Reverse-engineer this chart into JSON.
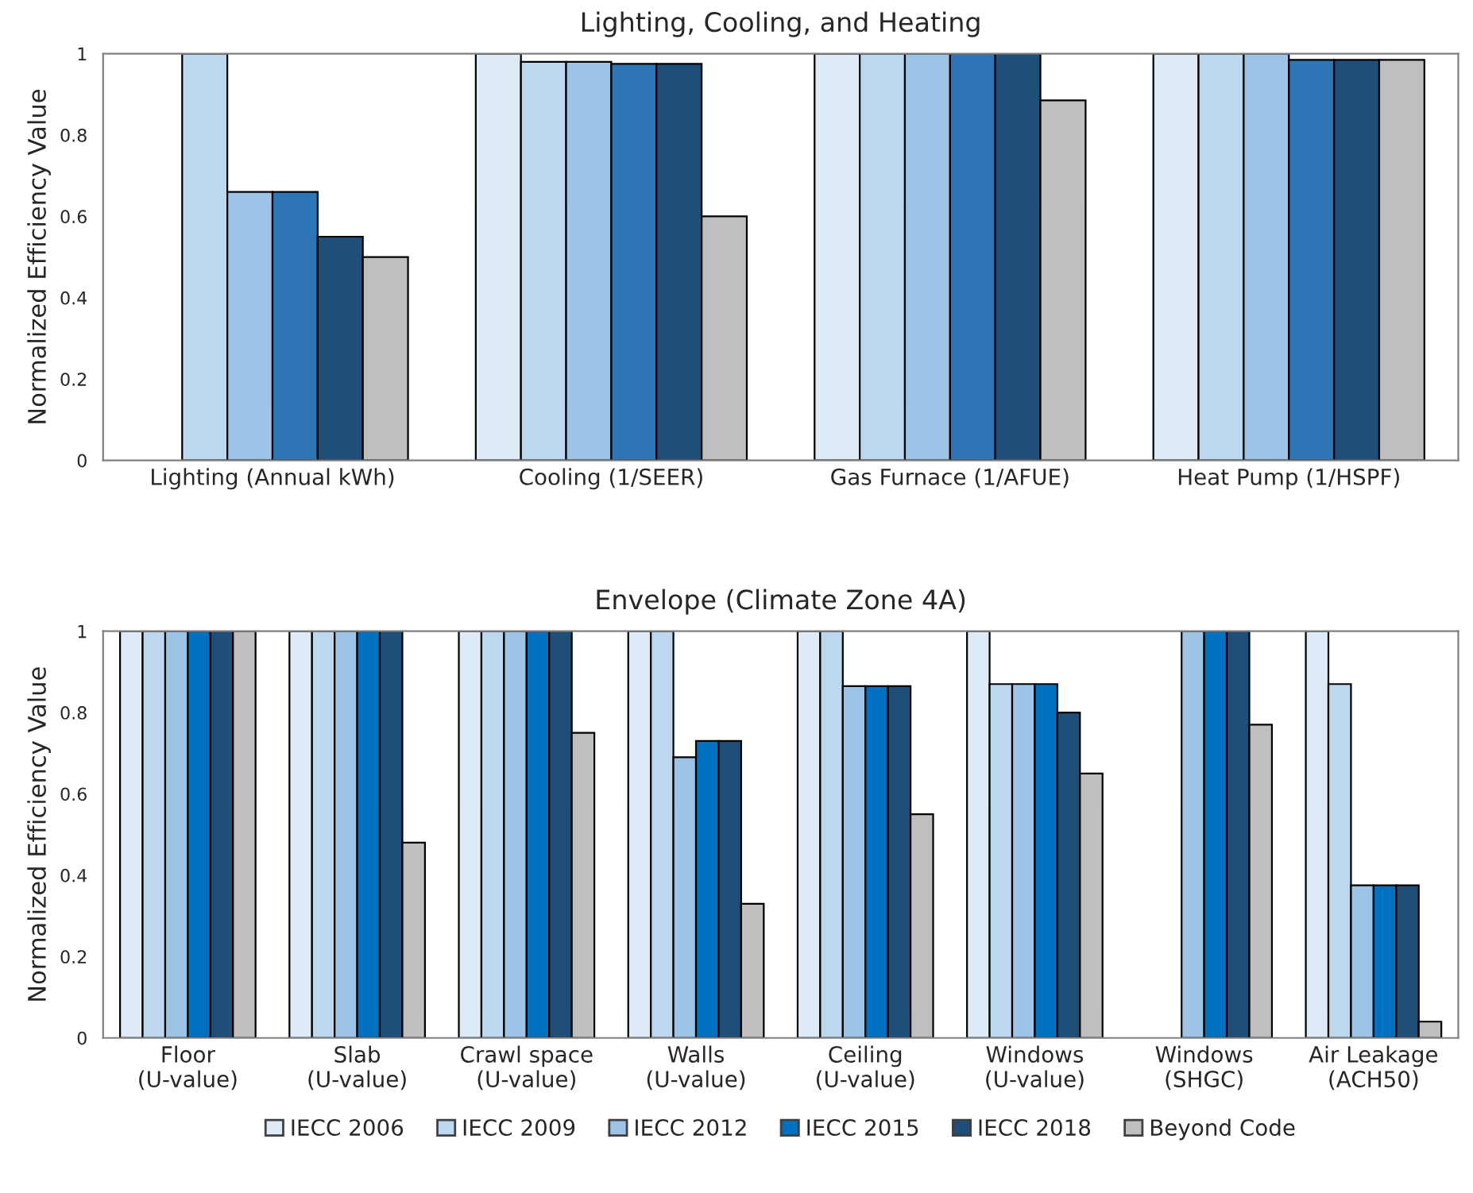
{
  "chart_data": [
    {
      "type": "bar",
      "title": "Lighting, Cooling, and Heating",
      "ylabel": "Normalized Efficiency Value",
      "categories": [
        "Lighting (Annual kWh)",
        "Cooling (1/SEER)",
        "Gas Furnace (1/AFUE)",
        "Heat Pump (1/HSPF)"
      ],
      "series": [
        {
          "color": "#deebf7",
          "values": [
            null,
            1,
            1,
            1
          ]
        },
        {
          "color": "#bdd7ee",
          "values": [
            1,
            0.98,
            1,
            1
          ]
        },
        {
          "color": "#9dc3e6",
          "values": [
            0.66,
            0.98,
            1,
            1
          ]
        },
        {
          "color": "#2e75b6",
          "values": [
            0.66,
            0.975,
            1,
            0.985
          ]
        },
        {
          "color": "#1f4e79",
          "values": [
            0.55,
            0.975,
            1,
            0.985
          ]
        },
        {
          "color": "#bfbfbf",
          "values": [
            0.5,
            0.6,
            0.885,
            0.985
          ]
        }
      ],
      "ylim": [
        0,
        1
      ],
      "yticks": [
        0,
        0.2,
        0.4,
        0.6,
        0.8,
        1
      ],
      "grid": false
    },
    {
      "type": "bar",
      "title": "Envelope (Climate Zone 4A)",
      "ylabel": "Normalized Efficiency Value",
      "categories": [
        "Floor\n(U-value)",
        "Slab\n(U-value)",
        "Crawl space\n(U-value)",
        "Walls\n(U-value)",
        "Ceiling\n(U-value)",
        "Windows\n(U-value)",
        "Windows\n(SHGC)",
        "Air Leakage\n(ACH50)"
      ],
      "series": [
        {
          "name": "IECC 2006",
          "color": "#deebf7",
          "values": [
            1,
            1,
            1,
            1,
            1,
            1,
            null,
            1
          ]
        },
        {
          "name": "IECC 2009",
          "color": "#bdd7ee",
          "values": [
            1,
            1,
            1,
            1,
            1,
            0.87,
            null,
            0.87
          ]
        },
        {
          "name": "IECC 2012",
          "color": "#9dc3e6",
          "values": [
            1,
            1,
            1,
            0.69,
            0.865,
            0.87,
            1,
            0.375
          ]
        },
        {
          "name": "IECC 2015",
          "color": "#0070c0",
          "values": [
            1,
            1,
            1,
            0.73,
            0.865,
            0.87,
            1,
            0.375
          ]
        },
        {
          "name": "IECC 2018",
          "color": "#1f4e79",
          "values": [
            1,
            1,
            1,
            0.73,
            0.865,
            0.8,
            1,
            0.375
          ]
        },
        {
          "name": "Beyond Code",
          "color": "#bfbfbf",
          "values": [
            1,
            0.48,
            0.75,
            0.33,
            0.55,
            0.65,
            0.77,
            0.04
          ]
        }
      ],
      "ylim": [
        0,
        1
      ],
      "yticks": [
        0,
        0.2,
        0.4,
        0.6,
        0.8,
        1
      ],
      "grid": false,
      "legend": "bottom"
    }
  ]
}
